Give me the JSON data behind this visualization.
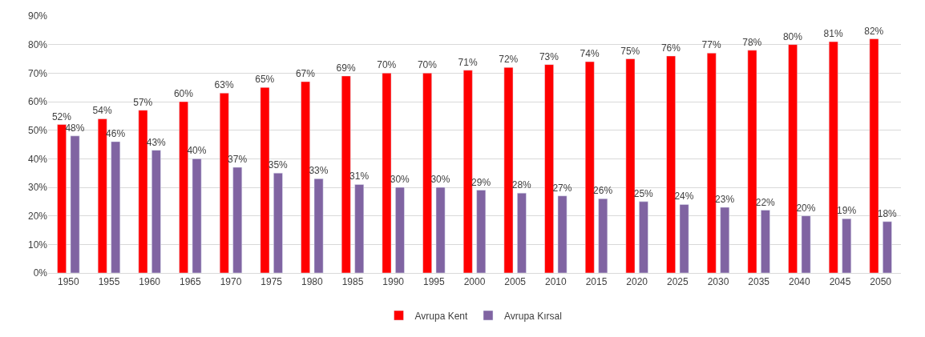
{
  "chart_data": {
    "type": "bar",
    "categories": [
      "1950",
      "1955",
      "1960",
      "1965",
      "1970",
      "1975",
      "1980",
      "1985",
      "1990",
      "1995",
      "2000",
      "2005",
      "2010",
      "2015",
      "2020",
      "2025",
      "2030",
      "2035",
      "2040",
      "2045",
      "2050"
    ],
    "series": [
      {
        "name": "Avrupa Kent",
        "color": "#ff0000",
        "values": [
          52,
          54,
          57,
          60,
          63,
          65,
          67,
          69,
          70,
          70,
          71,
          72,
          73,
          74,
          75,
          76,
          77,
          78,
          80,
          81,
          82
        ],
        "value_labels": [
          "52%",
          "54%",
          "57%",
          "60%",
          "63%",
          "65%",
          "67%",
          "69%",
          "70%",
          "70%",
          "71%",
          "72%",
          "73%",
          "74%",
          "75%",
          "76%",
          "77%",
          "78%",
          "80%",
          "81%",
          "82%"
        ]
      },
      {
        "name": "Avrupa Kırsal",
        "color": "#8064a2",
        "values": [
          48,
          46,
          43,
          40,
          37,
          35,
          33,
          31,
          30,
          30,
          29,
          28,
          27,
          26,
          25,
          24,
          23,
          22,
          20,
          19,
          18
        ],
        "value_labels": [
          "48%",
          "46%",
          "43%",
          "40%",
          "37%",
          "35%",
          "33%",
          "31%",
          "30%",
          "30%",
          "29%",
          "28%",
          "27%",
          "26%",
          "25%",
          "24%",
          "23%",
          "22%",
          "20%",
          "19%",
          "18%"
        ]
      }
    ],
    "ylim": [
      0,
      90
    ],
    "yticks": [
      {
        "value": 0,
        "label": "0%"
      },
      {
        "value": 10,
        "label": "10%"
      },
      {
        "value": 20,
        "label": "20%"
      },
      {
        "value": 30,
        "label": "30%"
      },
      {
        "value": 40,
        "label": "40%"
      },
      {
        "value": 50,
        "label": "50%"
      },
      {
        "value": 60,
        "label": "60%"
      },
      {
        "value": 70,
        "label": "70%"
      },
      {
        "value": 80,
        "label": "80%"
      },
      {
        "value": 90,
        "label": "90%"
      }
    ],
    "grid": "y",
    "legend": "bottom"
  }
}
